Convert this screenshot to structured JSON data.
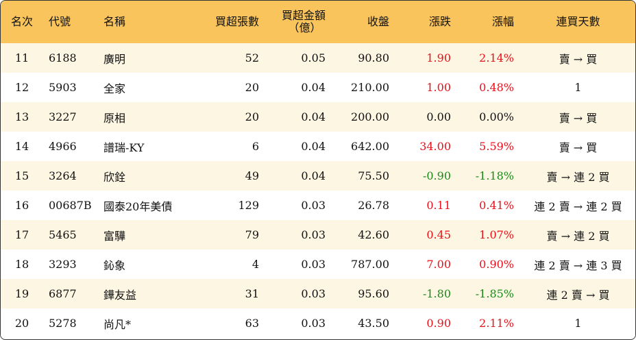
{
  "headers": {
    "rank": "名次",
    "code": "代號",
    "name": "名稱",
    "net_lots": "買超張數",
    "net_amount_line1": "買超金額",
    "net_amount_line2": "（億）",
    "close": "收盤",
    "change": "漲跌",
    "pct": "漲幅",
    "streak": "連買天數"
  },
  "rows": [
    {
      "rank": "11",
      "code": "6188",
      "name": "廣明",
      "net_lots": "52",
      "net_amount": "0.05",
      "close": "90.80",
      "change": "1.90",
      "pct": "2.14%",
      "streak": "賣 → 買",
      "trend": "up"
    },
    {
      "rank": "12",
      "code": "5903",
      "name": "全家",
      "net_lots": "20",
      "net_amount": "0.04",
      "close": "210.00",
      "change": "1.00",
      "pct": "0.48%",
      "streak": "1",
      "trend": "up"
    },
    {
      "rank": "13",
      "code": "3227",
      "name": "原相",
      "net_lots": "20",
      "net_amount": "0.04",
      "close": "200.00",
      "change": "0.00",
      "pct": "0.00%",
      "streak": "賣 → 買",
      "trend": "flat"
    },
    {
      "rank": "14",
      "code": "4966",
      "name": "譜瑞-KY",
      "net_lots": "6",
      "net_amount": "0.04",
      "close": "642.00",
      "change": "34.00",
      "pct": "5.59%",
      "streak": "賣 → 買",
      "trend": "up"
    },
    {
      "rank": "15",
      "code": "3264",
      "name": "欣銓",
      "net_lots": "49",
      "net_amount": "0.04",
      "close": "75.50",
      "change": "-0.90",
      "pct": "-1.18%",
      "streak": "賣 → 連 2 買",
      "trend": "down"
    },
    {
      "rank": "16",
      "code": "00687B",
      "name": "國泰20年美債",
      "net_lots": "129",
      "net_amount": "0.03",
      "close": "26.78",
      "change": "0.11",
      "pct": "0.41%",
      "streak": "連 2 賣 → 連 2 買",
      "trend": "up"
    },
    {
      "rank": "17",
      "code": "5465",
      "name": "富驊",
      "net_lots": "79",
      "net_amount": "0.03",
      "close": "42.60",
      "change": "0.45",
      "pct": "1.07%",
      "streak": "賣 → 連 2 買",
      "trend": "up"
    },
    {
      "rank": "18",
      "code": "3293",
      "name": "鈊象",
      "net_lots": "4",
      "net_amount": "0.03",
      "close": "787.00",
      "change": "7.00",
      "pct": "0.90%",
      "streak": "連 2 賣 → 連 3 買",
      "trend": "up"
    },
    {
      "rank": "19",
      "code": "6877",
      "name": "鏵友益",
      "net_lots": "31",
      "net_amount": "0.03",
      "close": "95.60",
      "change": "-1.80",
      "pct": "-1.85%",
      "streak": "連 2 賣 → 買",
      "trend": "down"
    },
    {
      "rank": "20",
      "code": "5278",
      "name": "尚凡*",
      "net_lots": "63",
      "net_amount": "0.03",
      "close": "43.50",
      "change": "0.90",
      "pct": "2.11%",
      "streak": "1",
      "trend": "up"
    }
  ]
}
